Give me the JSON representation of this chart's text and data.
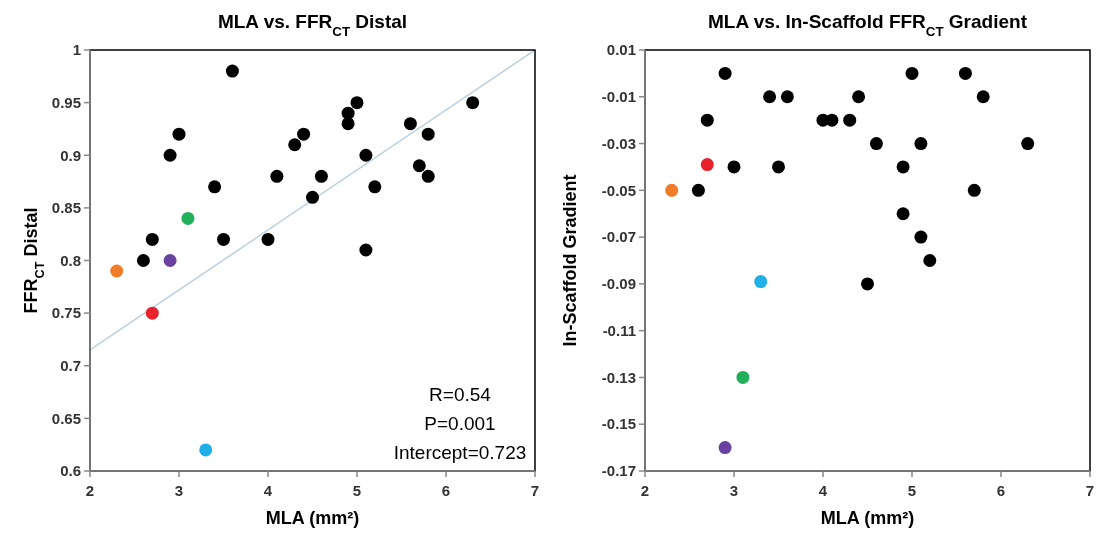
{
  "chart_data": [
    {
      "type": "scatter",
      "title": "MLA vs. FFR$_{CT}$ Distal",
      "xlabel": "MLA (mm²)",
      "ylabel": "FFR$_{CT}$ Distal",
      "xlim": [
        2,
        7
      ],
      "ylim": [
        0.6,
        1
      ],
      "xticks": [
        2,
        3,
        4,
        5,
        6,
        7
      ],
      "yticks": [
        0.6,
        0.65,
        0.7,
        0.75,
        0.8,
        0.85,
        0.9,
        0.95,
        1
      ],
      "marker": "circle",
      "grid": false,
      "annotations": [
        "R=0.54",
        "P=0.001",
        "Intercept=0.723"
      ],
      "series": [
        {
          "type": "line",
          "marker": "none",
          "color": "#bccfdd",
          "x": [
            2,
            7
          ],
          "values": [
            0.715,
            1.0
          ]
        },
        {
          "color": "#000000",
          "x": [
            3.6,
            5.0,
            6.3,
            4.9,
            4.9,
            5.6,
            3.0,
            4.4,
            5.8,
            4.3,
            2.9,
            5.1,
            5.7,
            4.1,
            4.6,
            5.8,
            3.4,
            5.2,
            4.5,
            2.7,
            3.5,
            4.0,
            5.1,
            2.6
          ],
          "values": [
            0.98,
            0.95,
            0.95,
            0.94,
            0.93,
            0.93,
            0.92,
            0.92,
            0.92,
            0.91,
            0.9,
            0.9,
            0.89,
            0.88,
            0.88,
            0.88,
            0.87,
            0.87,
            0.86,
            0.82,
            0.82,
            0.82,
            0.81,
            0.8
          ]
        },
        {
          "color": "#f07c2a",
          "x": [
            2.3
          ],
          "values": [
            0.79
          ]
        },
        {
          "color": "#e8212a",
          "x": [
            2.7
          ],
          "values": [
            0.75
          ]
        },
        {
          "color": "#6a40a0",
          "x": [
            2.9
          ],
          "values": [
            0.8
          ]
        },
        {
          "color": "#22b05a",
          "x": [
            3.1
          ],
          "values": [
            0.84
          ]
        },
        {
          "color": "#1fb0e8",
          "x": [
            3.3
          ],
          "values": [
            0.62
          ]
        }
      ]
    },
    {
      "type": "scatter",
      "title": "MLA vs. In-Scaffold FFR$_{CT}$ Gradient",
      "xlabel": "MLA (mm²)",
      "ylabel": "In-Scaffold Gradient",
      "xlim": [
        2,
        7
      ],
      "ylim": [
        -0.17,
        0.01
      ],
      "xticks": [
        2,
        3,
        4,
        5,
        6,
        7
      ],
      "yticks": [
        -0.17,
        -0.15,
        -0.13,
        -0.11,
        -0.09,
        -0.07,
        -0.05,
        -0.03,
        -0.01,
        0.01
      ],
      "marker": "circle",
      "grid": false,
      "series": [
        {
          "color": "#000000",
          "x": [
            2.9,
            5.0,
            5.6,
            3.4,
            3.6,
            4.4,
            5.8,
            2.7,
            4.0,
            4.1,
            4.3,
            4.6,
            5.1,
            6.3,
            3.0,
            3.5,
            4.9,
            2.6,
            5.7,
            4.9,
            5.1,
            5.2,
            4.5
          ],
          "values": [
            0.0,
            0.0,
            0.0,
            -0.01,
            -0.01,
            -0.01,
            -0.01,
            -0.02,
            -0.02,
            -0.02,
            -0.02,
            -0.03,
            -0.03,
            -0.03,
            -0.04,
            -0.04,
            -0.04,
            -0.05,
            -0.05,
            -0.06,
            -0.07,
            -0.08,
            -0.09
          ]
        },
        {
          "color": "#e8212a",
          "x": [
            2.7
          ],
          "values": [
            -0.039
          ]
        },
        {
          "color": "#f07c2a",
          "x": [
            2.3
          ],
          "values": [
            -0.05
          ]
        },
        {
          "color": "#1fb0e8",
          "x": [
            3.3
          ],
          "values": [
            -0.089
          ]
        },
        {
          "color": "#22b05a",
          "x": [
            3.1
          ],
          "values": [
            -0.13
          ]
        },
        {
          "color": "#6a40a0",
          "x": [
            2.9
          ],
          "values": [
            -0.16
          ]
        }
      ]
    }
  ]
}
